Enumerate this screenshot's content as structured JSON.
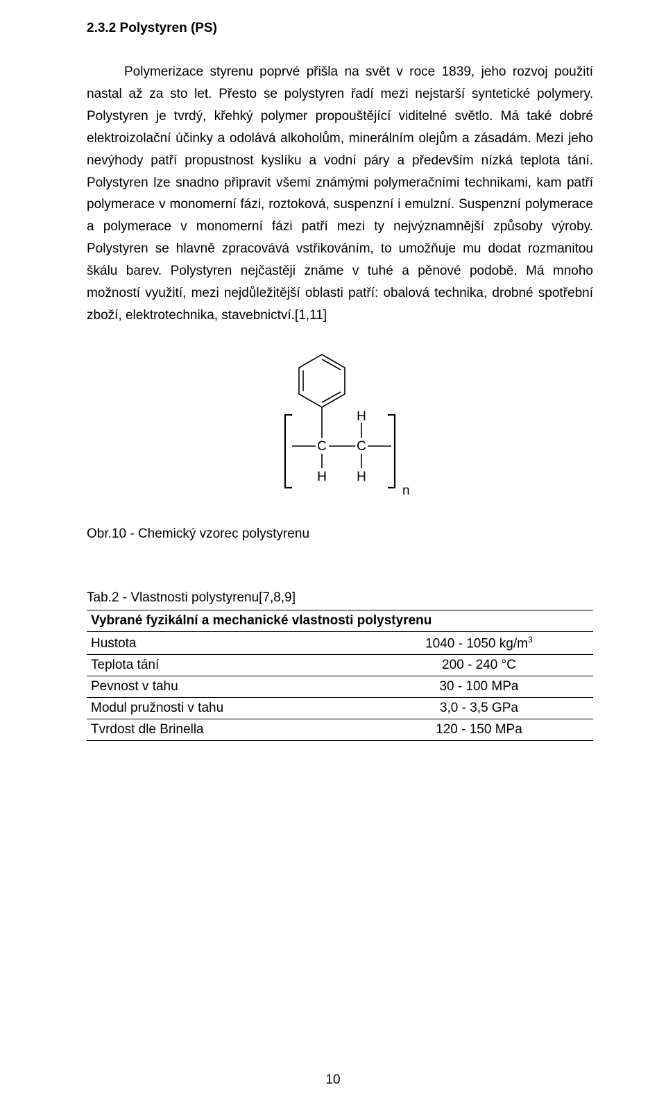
{
  "heading": "2.3.2 Polystyren (PS)",
  "body_text": "Polymerizace styrenu poprvé přišla na svět v roce 1839, jeho rozvoj použití nastal až za sto let. Přesto se polystyren řadí mezi nejstarší syntetické polymery. Polystyren je tvrdý, křehký polymer propouštějící viditelné světlo. Má také dobré elektroizolační účinky a odolává alkoholům, minerálním olejům a zásadám. Mezi jeho nevýhody patří propustnost kyslíku a vodní páry a především nízká teplota tání. Polystyren lze snadno připravit všemi známými polymeračními technikami, kam patří polymerace v monomerní fázi, roztoková, suspenzní i emulzní. Suspenzní polymerace a polymerace v monomerní fázi patří mezi ty nejvýznamnější způsoby výroby. Polystyren se hlavně zpracovává vstřikováním, to umožňuje mu dodat rozmanitou škálu barev. Polystyren nejčastěji známe v tuhé a pěnové podobě. Má mnoho možností využití, mezi nejdůležitější oblasti patří: obalová technika, drobné spotřební zboží, elektrotechnika, stavebnictví.[1,11]",
  "figure": {
    "caption": "Obr.10 - Chemický vzorec polystyrenu",
    "stroke_color": "#000000",
    "text_color": "#000000",
    "stroke_width": 1.6,
    "svg_viewbox": "0 0 212 224",
    "labels": {
      "C1": "C",
      "C2": "C",
      "H_top": "H",
      "H_left": "H",
      "H_bot1": "H",
      "H_bot2": "H",
      "n": "n"
    }
  },
  "table": {
    "caption": "Tab.2 - Vlastnosti polystyrenu[7,8,9]",
    "header": "Vybrané fyzikální a mechanické vlastnosti polystyrenu",
    "rows": [
      {
        "prop": "Hustota",
        "val": "1040 - 1050 kg/m",
        "val_sup": "3"
      },
      {
        "prop": "Teplota tání",
        "val": "200 - 240 °C",
        "val_sup": ""
      },
      {
        "prop": "Pevnost v tahu",
        "val": "30 - 100 MPa",
        "val_sup": ""
      },
      {
        "prop": "Modul pružnosti v tahu",
        "val": "3,0 - 3,5 GPa",
        "val_sup": ""
      },
      {
        "prop": "Tvrdost dle Brinella",
        "val": "120 - 150 MPa",
        "val_sup": ""
      }
    ]
  },
  "page_number": "10"
}
